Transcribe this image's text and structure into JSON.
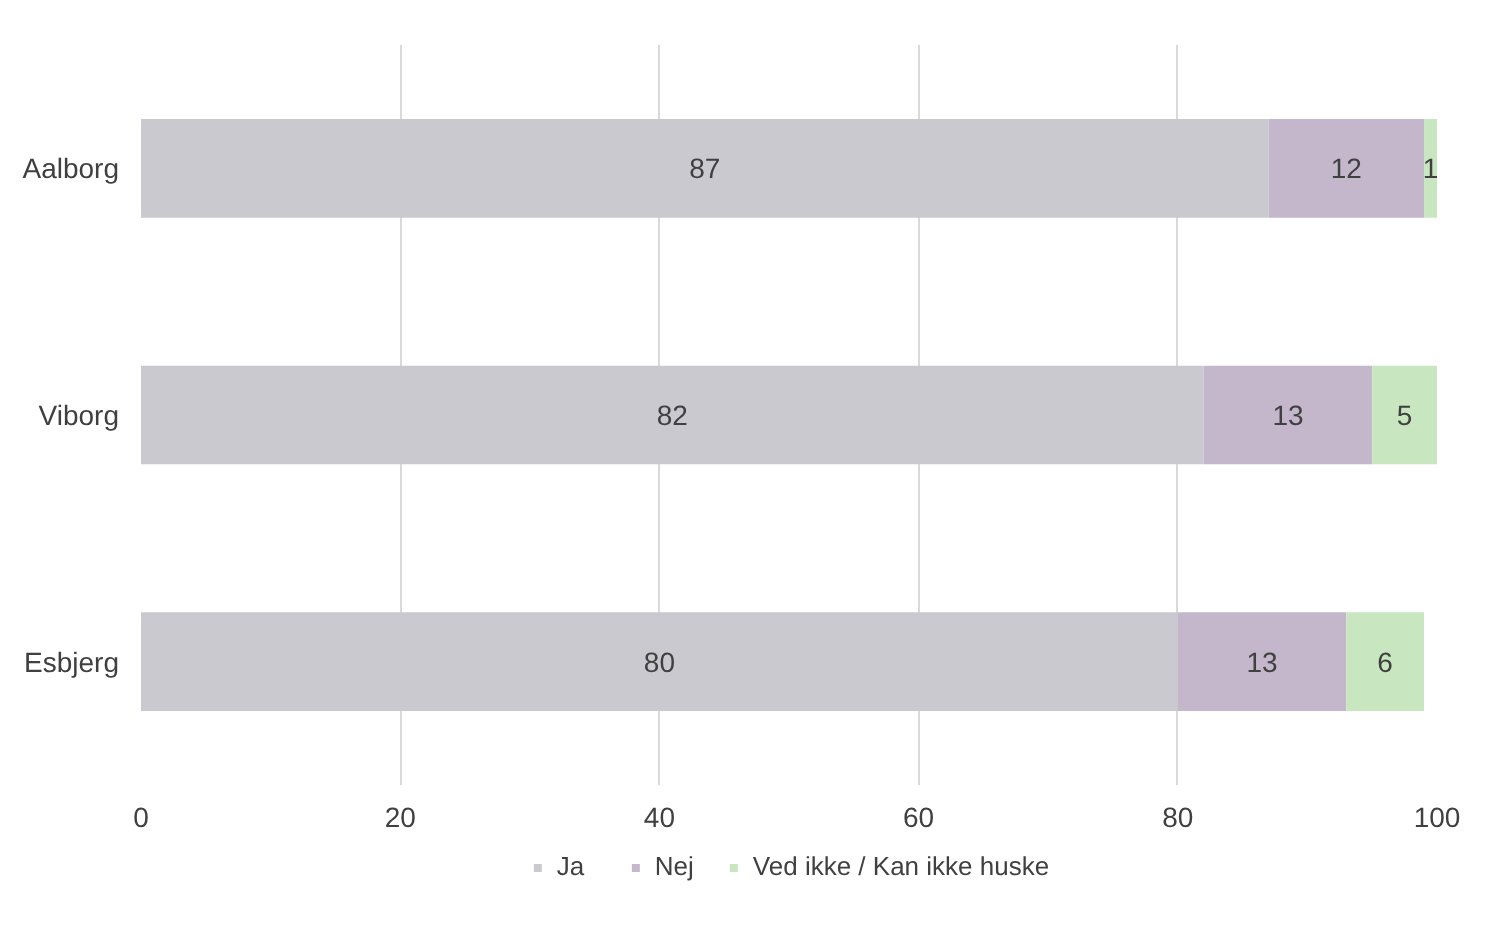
{
  "chart_data": {
    "type": "bar",
    "orientation": "horizontal",
    "stacked": true,
    "categories": [
      "Aalborg",
      "Viborg",
      "Esbjerg"
    ],
    "series": [
      {
        "name": "Ja",
        "color": "#c9c9cf",
        "values": [
          87,
          82,
          80
        ]
      },
      {
        "name": "Nej",
        "color": "#c4b6cb",
        "values": [
          12,
          13,
          13
        ]
      },
      {
        "name": "Ved ikke / Kan ikke huske",
        "color": "#c8e6c0",
        "values": [
          1,
          5,
          6
        ]
      }
    ],
    "xlim": [
      0,
      100
    ],
    "xticks": [
      0,
      20,
      40,
      60,
      80,
      100
    ],
    "grid": "x",
    "legend": "bottom",
    "data_labels": true
  }
}
